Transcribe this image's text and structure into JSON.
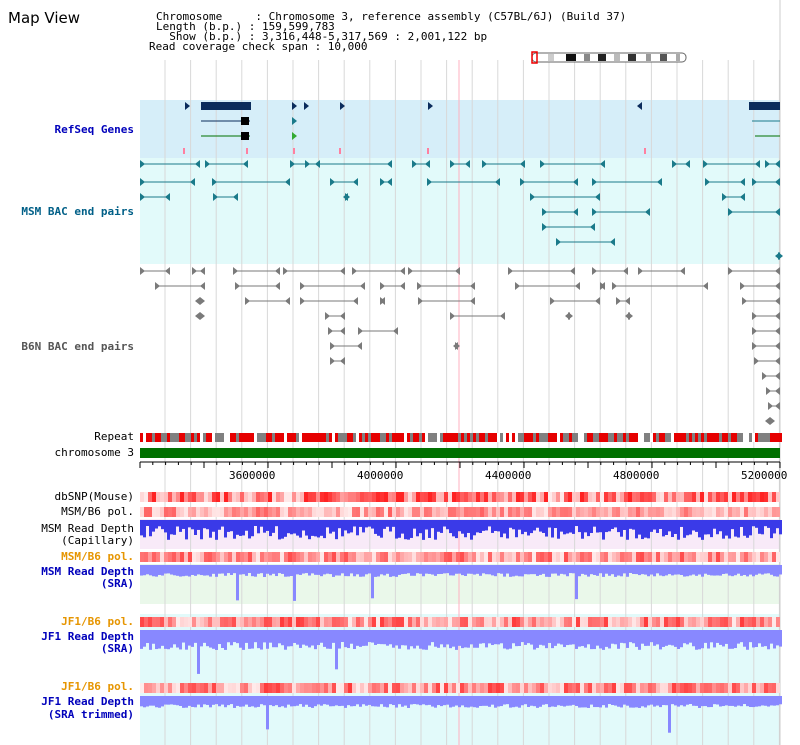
{
  "title": "Map View",
  "info": {
    "chromosome": "Chromosome     : Chromosome 3, reference assembly (C57BL/6J) (Build 37)",
    "length": "Length (b.p.) : 159,599,783",
    "show": "  Show (b.p.) : 3,316,448-5,317,569 : 2,001,122 bp",
    "coverage": "Read coverage check span : 10,000"
  },
  "tracks": {
    "refseq": "RefSeq Genes",
    "msm_bac": "MSM BAC end pairs",
    "b6n_bac": "B6N BAC end pairs",
    "repeat": "Repeat",
    "chromosome": "chromosome 3",
    "dbsnp": "dbSNP(Mouse)",
    "msm_b6_pol_1": "MSM/B6 pol.",
    "msm_read_cap_1": "MSM Read Depth",
    "msm_read_cap_2": "(Capillary)",
    "msm_b6_pol_2": "MSM/B6 pol.",
    "msm_read_sra_1": "MSM Read Depth",
    "msm_read_sra_2": "(SRA)",
    "jf1_pol_1": "JF1/B6 pol.",
    "jf1_read_1": "JF1 Read Depth",
    "jf1_read_2": "(SRA)",
    "jf1_pol_2": "JF1/B6 pol.",
    "jf1_trim_1": "JF1 Read Depth",
    "jf1_trim_2": "(SRA trimmed)"
  },
  "axis": {
    "ticks": [
      "3600000",
      "4000000",
      "4400000",
      "4800000",
      "5200000"
    ]
  },
  "colors": {
    "refseq_bg": "#d6eef9",
    "msm_bg": "#e2fafa",
    "msm_feature": "#1a7a8a",
    "b6n_feature": "#7a7a7a",
    "gene": "#0b2c5c",
    "chrom_bar": "#007000",
    "depth_blue": "#3a3ae8",
    "depth_light": "#8888ff",
    "cap_bg": "#f8eaf8",
    "sra_bg": "#eaf8ea",
    "jf_bg": "#e2fafa"
  }
}
